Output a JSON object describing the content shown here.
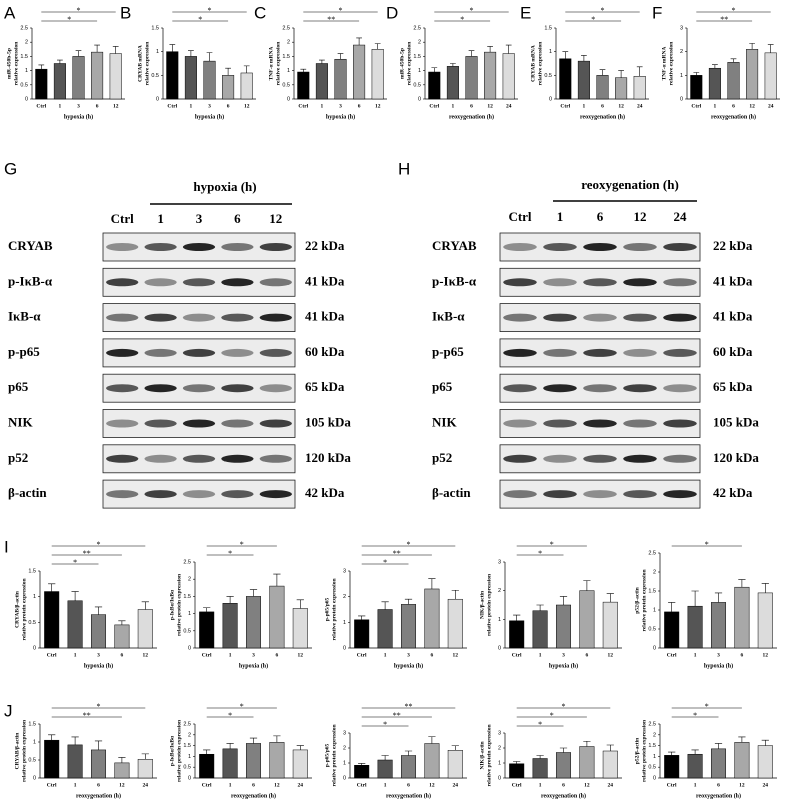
{
  "panel_labels": [
    "A",
    "B",
    "C",
    "D",
    "E",
    "F",
    "G",
    "H",
    "I",
    "J"
  ],
  "bar_colors": [
    "#000000",
    "#555555",
    "#808080",
    "#a8a8a8",
    "#dcdcdc"
  ],
  "chart_data": [
    {
      "type": "bar",
      "ylabel": [
        "miR-450b-5p",
        "relative expression"
      ],
      "x_label": "hypoxia (h)",
      "categories": [
        "Ctrl",
        "1",
        "3",
        "6",
        "12"
      ],
      "values": [
        1.05,
        1.25,
        1.5,
        1.65,
        1.6
      ],
      "errors": [
        0.15,
        0.12,
        0.2,
        0.25,
        0.25
      ],
      "ylim": [
        0,
        2.5
      ],
      "yticks": [
        0,
        0.5,
        1,
        1.5,
        2,
        2.5
      ],
      "significance": [
        {
          "pair": [
            0,
            4
          ],
          "label": "*"
        },
        {
          "pair": [
            0,
            3
          ],
          "label": "*"
        }
      ]
    },
    {
      "type": "bar",
      "ylabel": [
        "CRYAB mRNA",
        "relative expression"
      ],
      "x_label": "hypoxia (h)",
      "categories": [
        "Ctrl",
        "1",
        "3",
        "6",
        "12"
      ],
      "values": [
        1.0,
        0.9,
        0.8,
        0.5,
        0.55
      ],
      "errors": [
        0.15,
        0.12,
        0.18,
        0.15,
        0.15
      ],
      "ylim": [
        0,
        1.5
      ],
      "yticks": [
        0,
        0.5,
        1,
        1.5
      ],
      "significance": [
        {
          "pair": [
            0,
            4
          ],
          "label": "*"
        },
        {
          "pair": [
            0,
            3
          ],
          "label": "*"
        }
      ]
    },
    {
      "type": "bar",
      "ylabel": [
        "TNF-α mRNA",
        "relative expression"
      ],
      "x_label": "hypoxia (h)",
      "categories": [
        "Ctrl",
        "1",
        "3",
        "6",
        "12"
      ],
      "values": [
        0.95,
        1.25,
        1.4,
        1.9,
        1.75
      ],
      "errors": [
        0.1,
        0.12,
        0.2,
        0.25,
        0.2
      ],
      "ylim": [
        0,
        2.5
      ],
      "yticks": [
        0,
        0.5,
        1,
        1.5,
        2,
        2.5
      ],
      "significance": [
        {
          "pair": [
            0,
            4
          ],
          "label": "*"
        },
        {
          "pair": [
            0,
            3
          ],
          "label": "**"
        }
      ]
    },
    {
      "type": "bar",
      "ylabel": [
        "miR-450b-5p",
        "relative expression"
      ],
      "x_label": "reoxygenation (h)",
      "categories": [
        "Ctrl",
        "1",
        "6",
        "12",
        "24"
      ],
      "values": [
        0.95,
        1.15,
        1.5,
        1.65,
        1.6
      ],
      "errors": [
        0.15,
        0.1,
        0.2,
        0.2,
        0.3
      ],
      "ylim": [
        0,
        2.5
      ],
      "yticks": [
        0,
        0.5,
        1,
        1.5,
        2,
        2.5
      ],
      "significance": [
        {
          "pair": [
            0,
            4
          ],
          "label": "*"
        },
        {
          "pair": [
            0,
            3
          ],
          "label": "*"
        }
      ]
    },
    {
      "type": "bar",
      "ylabel": [
        "CRYAB mRNA",
        "relative expression"
      ],
      "x_label": "reoxygenation (h)",
      "categories": [
        "Ctrl",
        "1",
        "6",
        "12",
        "24"
      ],
      "values": [
        0.85,
        0.8,
        0.5,
        0.45,
        0.48
      ],
      "errors": [
        0.15,
        0.12,
        0.12,
        0.15,
        0.2
      ],
      "ylim": [
        0,
        1.5
      ],
      "yticks": [
        0,
        0.5,
        1,
        1.5
      ],
      "significance": [
        {
          "pair": [
            0,
            4
          ],
          "label": "*"
        },
        {
          "pair": [
            0,
            3
          ],
          "label": "*"
        }
      ]
    },
    {
      "type": "bar",
      "ylabel": [
        "TNF-α mRNA",
        "relative expression"
      ],
      "x_label": "reoxygenation (h)",
      "categories": [
        "Ctrl",
        "1",
        "6",
        "12",
        "24"
      ],
      "values": [
        1.0,
        1.3,
        1.55,
        2.1,
        1.95
      ],
      "errors": [
        0.12,
        0.15,
        0.15,
        0.25,
        0.35
      ],
      "ylim": [
        0,
        3
      ],
      "yticks": [
        0,
        1,
        2,
        3
      ],
      "significance": [
        {
          "pair": [
            0,
            4
          ],
          "label": "*"
        },
        {
          "pair": [
            0,
            3
          ],
          "label": "**"
        }
      ]
    },
    {
      "type": "bar",
      "ylabel": [
        "CRYAB/β-actin",
        "relative protein expression"
      ],
      "x_label": "hypoxia (h)",
      "categories": [
        "Ctrl",
        "1",
        "3",
        "6",
        "12"
      ],
      "values": [
        1.1,
        0.92,
        0.65,
        0.45,
        0.75
      ],
      "errors": [
        0.15,
        0.18,
        0.15,
        0.08,
        0.15
      ],
      "ylim": [
        0,
        1.5
      ],
      "yticks": [
        0,
        0.5,
        1,
        1.5
      ],
      "significance": [
        {
          "pair": [
            0,
            4
          ],
          "label": "*"
        },
        {
          "pair": [
            0,
            3
          ],
          "label": "**"
        },
        {
          "pair": [
            0,
            2
          ],
          "label": "*"
        }
      ]
    },
    {
      "type": "bar",
      "ylabel": [
        "p-IκBα/IκBα",
        "relative protein expression"
      ],
      "x_label": "hypoxia (h)",
      "categories": [
        "Ctrl",
        "1",
        "3",
        "6",
        "12"
      ],
      "values": [
        1.05,
        1.3,
        1.5,
        1.8,
        1.15
      ],
      "errors": [
        0.12,
        0.2,
        0.2,
        0.35,
        0.25
      ],
      "ylim": [
        0,
        2.5
      ],
      "yticks": [
        0,
        0.5,
        1,
        1.5,
        2,
        2.5
      ],
      "significance": [
        {
          "pair": [
            0,
            3
          ],
          "label": "*"
        },
        {
          "pair": [
            0,
            2
          ],
          "label": "*"
        }
      ]
    },
    {
      "type": "bar",
      "ylabel": [
        "p-p65/p65",
        "relative protein expression"
      ],
      "x_label": "hypoxia (h)",
      "categories": [
        "Ctrl",
        "1",
        "3",
        "6",
        "12"
      ],
      "values": [
        1.1,
        1.5,
        1.7,
        2.3,
        1.9
      ],
      "errors": [
        0.15,
        0.3,
        0.2,
        0.4,
        0.35
      ],
      "ylim": [
        0,
        3
      ],
      "yticks": [
        0,
        1,
        2,
        3
      ],
      "significance": [
        {
          "pair": [
            0,
            4
          ],
          "label": "*"
        },
        {
          "pair": [
            0,
            3
          ],
          "label": "**"
        },
        {
          "pair": [
            0,
            2
          ],
          "label": "*"
        }
      ]
    },
    {
      "type": "bar",
      "ylabel": [
        "NIK/β-actin",
        "relative protein expression"
      ],
      "x_label": "hypoxia (h)",
      "categories": [
        "Ctrl",
        "1",
        "3",
        "6",
        "12"
      ],
      "values": [
        0.95,
        1.3,
        1.5,
        2.0,
        1.6
      ],
      "errors": [
        0.2,
        0.2,
        0.3,
        0.35,
        0.3
      ],
      "ylim": [
        0,
        3
      ],
      "yticks": [
        0,
        1,
        2,
        3
      ],
      "significance": [
        {
          "pair": [
            0,
            3
          ],
          "label": "*"
        },
        {
          "pair": [
            0,
            2
          ],
          "label": "*"
        }
      ]
    },
    {
      "type": "bar",
      "ylabel": [
        "p52/β-actin",
        "relative protein expression"
      ],
      "x_label": "hypoxia (h)",
      "categories": [
        "Ctrl",
        "1",
        "3",
        "6",
        "12"
      ],
      "values": [
        0.95,
        1.1,
        1.2,
        1.6,
        1.45
      ],
      "errors": [
        0.25,
        0.4,
        0.25,
        0.2,
        0.25
      ],
      "ylim": [
        0,
        2.5
      ],
      "yticks": [
        0,
        0.5,
        1,
        1.5,
        2,
        2.5
      ],
      "significance": [
        {
          "pair": [
            0,
            3
          ],
          "label": "*"
        }
      ]
    },
    {
      "type": "bar",
      "ylabel": [
        "CRYAB/β-actin",
        "relative protein expression"
      ],
      "x_label": "reoxygenation (h)",
      "categories": [
        "Ctrl",
        "1",
        "6",
        "12",
        "24"
      ],
      "values": [
        1.05,
        0.92,
        0.78,
        0.42,
        0.52
      ],
      "errors": [
        0.15,
        0.22,
        0.25,
        0.15,
        0.15
      ],
      "ylim": [
        0,
        1.5
      ],
      "yticks": [
        0,
        0.5,
        1,
        1.5
      ],
      "significance": [
        {
          "pair": [
            0,
            4
          ],
          "label": "*"
        },
        {
          "pair": [
            0,
            3
          ],
          "label": "**"
        }
      ]
    },
    {
      "type": "bar",
      "ylabel": [
        "p-IκBα/IκBα",
        "relative protein expression"
      ],
      "x_label": "reoxygenation (h)",
      "categories": [
        "Ctrl",
        "1",
        "6",
        "12",
        "24"
      ],
      "values": [
        1.1,
        1.35,
        1.6,
        1.65,
        1.3
      ],
      "errors": [
        0.2,
        0.25,
        0.25,
        0.3,
        0.2
      ],
      "ylim": [
        0,
        2.5
      ],
      "yticks": [
        0,
        0.5,
        1,
        1.5,
        2,
        2.5
      ],
      "significance": [
        {
          "pair": [
            0,
            3
          ],
          "label": "*"
        },
        {
          "pair": [
            0,
            2
          ],
          "label": "*"
        }
      ]
    },
    {
      "type": "bar",
      "ylabel": [
        "p-p65/p65",
        "relative protein expression"
      ],
      "x_label": "reoxygenation (h)",
      "categories": [
        "Ctrl",
        "1",
        "6",
        "12",
        "24"
      ],
      "values": [
        0.85,
        1.2,
        1.5,
        2.3,
        1.85
      ],
      "errors": [
        0.12,
        0.3,
        0.3,
        0.45,
        0.3
      ],
      "ylim": [
        0,
        3
      ],
      "yticks": [
        0,
        1,
        2,
        3
      ],
      "significance": [
        {
          "pair": [
            0,
            4
          ],
          "label": "**"
        },
        {
          "pair": [
            0,
            3
          ],
          "label": "**"
        },
        {
          "pair": [
            0,
            2
          ],
          "label": "*"
        }
      ]
    },
    {
      "type": "bar",
      "ylabel": [
        "NIK/β-actin",
        "relative protein expression"
      ],
      "x_label": "reoxygenation (h)",
      "categories": [
        "Ctrl",
        "1",
        "6",
        "12",
        "24"
      ],
      "values": [
        0.95,
        1.3,
        1.7,
        2.1,
        1.8
      ],
      "errors": [
        0.15,
        0.2,
        0.3,
        0.35,
        0.4
      ],
      "ylim": [
        0,
        3
      ],
      "yticks": [
        0,
        1,
        2,
        3
      ],
      "significance": [
        {
          "pair": [
            0,
            4
          ],
          "label": "*"
        },
        {
          "pair": [
            0,
            3
          ],
          "label": "*"
        },
        {
          "pair": [
            0,
            2
          ],
          "label": "*"
        }
      ]
    },
    {
      "type": "bar",
      "ylabel": [
        "p52/β-actin",
        "relative protein expression"
      ],
      "x_label": "reoxygenation (h)",
      "categories": [
        "Ctrl",
        "1",
        "6",
        "12",
        "24"
      ],
      "values": [
        1.05,
        1.1,
        1.35,
        1.65,
        1.5
      ],
      "errors": [
        0.15,
        0.2,
        0.25,
        0.25,
        0.25
      ],
      "ylim": [
        0,
        2.5
      ],
      "yticks": [
        0,
        0.5,
        1,
        1.5,
        2,
        2.5
      ],
      "significance": [
        {
          "pair": [
            0,
            3
          ],
          "label": "*"
        },
        {
          "pair": [
            0,
            2
          ],
          "label": "*"
        }
      ]
    }
  ],
  "blots": [
    {
      "condition": "hypoxia (h)",
      "lanes": [
        "Ctrl",
        "1",
        "3",
        "6",
        "12"
      ],
      "rows": [
        {
          "protein": "CRYAB",
          "kda": "22 kDa"
        },
        {
          "protein": "p-IκB-α",
          "kda": "41 kDa"
        },
        {
          "protein": "IκB-α",
          "kda": "41 kDa"
        },
        {
          "protein": "p-p65",
          "kda": "60 kDa"
        },
        {
          "protein": "p65",
          "kda": "65 kDa"
        },
        {
          "protein": "NIK",
          "kda": "105 kDa"
        },
        {
          "protein": "p52",
          "kda": "120 kDa"
        },
        {
          "protein": "β-actin",
          "kda": "42 kDa"
        }
      ]
    },
    {
      "condition": "reoxygenation (h)",
      "lanes": [
        "Ctrl",
        "1",
        "6",
        "12",
        "24"
      ],
      "rows": [
        {
          "protein": "CRYAB",
          "kda": "22 kDa"
        },
        {
          "protein": "p-IκB-α",
          "kda": "41 kDa"
        },
        {
          "protein": "IκB-α",
          "kda": "41 kDa"
        },
        {
          "protein": "p-p65",
          "kda": "60 kDa"
        },
        {
          "protein": "p65",
          "kda": "65 kDa"
        },
        {
          "protein": "NIK",
          "kda": "105 kDa"
        },
        {
          "protein": "p52",
          "kda": "120 kDa"
        },
        {
          "protein": "β-actin",
          "kda": "42 kDa"
        }
      ]
    }
  ]
}
